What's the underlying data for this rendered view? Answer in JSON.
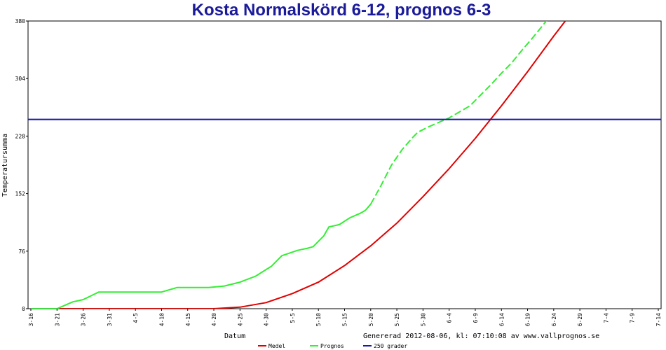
{
  "chart_data": {
    "type": "line",
    "title": "Kosta Normalskörd 6-12, prognos 6-3",
    "xlabel": "Datum",
    "ylabel": "Temperatursumma",
    "ylim": [
      0,
      380
    ],
    "yticks": [
      0,
      76,
      152,
      228,
      304,
      380
    ],
    "x_categories": [
      "3-16",
      "3-21",
      "3-26",
      "3-31",
      "4-5",
      "4-10",
      "4-15",
      "4-20",
      "4-25",
      "4-30",
      "5-5",
      "5-10",
      "5-15",
      "5-20",
      "5-25",
      "5-30",
      "6-4",
      "6-9",
      "6-14",
      "6-19",
      "6-24",
      "6-29",
      "7-4",
      "7-9",
      "7-14"
    ],
    "grid": false,
    "legend_position": "bottom",
    "series": [
      {
        "name": "Medel",
        "color": "#e00000",
        "dashed": false,
        "x": [
          "3-16",
          "4-20",
          "4-25",
          "4-30",
          "5-5",
          "5-10",
          "5-15",
          "5-20",
          "5-25",
          "5-30",
          "6-4",
          "6-9",
          "6-14",
          "6-19",
          "6-24",
          "6-29"
        ],
        "values": [
          0,
          0,
          2,
          8,
          20,
          35,
          57,
          83,
          113,
          148,
          185,
          225,
          268,
          313,
          360,
          405
        ]
      },
      {
        "name": "Prognos",
        "color": "#33ee33",
        "dashed": false,
        "x": [
          "3-16",
          "3-21",
          "3-24",
          "3-26",
          "3-29",
          "4-1",
          "4-10",
          "4-13",
          "4-19",
          "4-22",
          "4-25",
          "4-28",
          "5-1",
          "5-3",
          "5-6",
          "5-8",
          "5-9",
          "5-11",
          "5-12",
          "5-14",
          "5-16",
          "5-18",
          "5-19",
          "5-20"
        ],
        "values": [
          0,
          0,
          9,
          12,
          22,
          22,
          22,
          28,
          28,
          30,
          35,
          43,
          56,
          70,
          77,
          80,
          82,
          96,
          108,
          111,
          120,
          126,
          130,
          138
        ]
      },
      {
        "name": "Prognos",
        "color": "#33ee33",
        "dashed": true,
        "x": [
          "5-20",
          "5-22",
          "5-24",
          "5-26",
          "5-28",
          "5-29",
          "5-31",
          "6-2",
          "6-4",
          "6-6",
          "6-8",
          "6-10",
          "6-12",
          "6-14",
          "6-16",
          "6-18",
          "6-20",
          "6-22",
          "6-24",
          "6-26"
        ],
        "values": [
          138,
          163,
          190,
          210,
          226,
          233,
          240,
          246,
          252,
          260,
          268,
          282,
          296,
          311,
          325,
          342,
          358,
          375,
          392,
          410
        ]
      },
      {
        "name": "250 grader",
        "color": "#1a1aaa",
        "dashed": false,
        "constant": 250
      }
    ]
  },
  "footer_text": "Genererad 2012-08-06, kl: 07:10:08 av www.vallprognos.se",
  "legend": {
    "items": [
      {
        "label": "Medel",
        "color": "#e00000"
      },
      {
        "label": "Prognos",
        "color": "#33ee33"
      },
      {
        "label": "250 grader",
        "color": "#1a1aaa"
      }
    ]
  }
}
